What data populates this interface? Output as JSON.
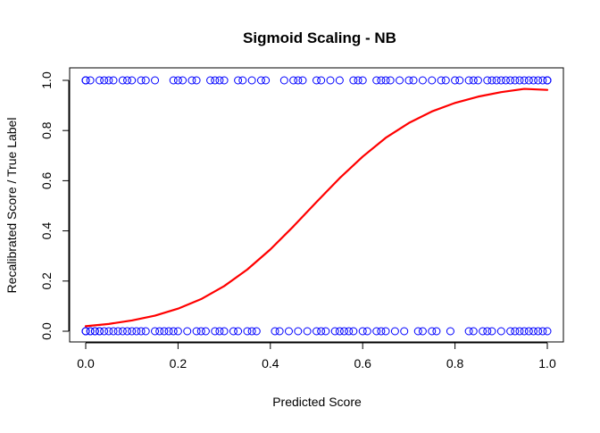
{
  "chart_data": {
    "type": "scatter",
    "title": "Sigmoid Scaling - NB",
    "xlabel": "Predicted Score",
    "ylabel": "Recalibrated Score / True Label",
    "xlim": [
      0.0,
      1.0
    ],
    "ylim": [
      0.0,
      1.0
    ],
    "x_ticks": [
      "0.0",
      "0.2",
      "0.4",
      "0.6",
      "0.8",
      "1.0"
    ],
    "y_ticks": [
      "0.0",
      "0.2",
      "0.4",
      "0.6",
      "0.8",
      "1.0"
    ],
    "grid": false,
    "legend": "none",
    "series": [
      {
        "type": "scatter",
        "color": "#0000ff",
        "marker": "open-circle",
        "points": [
          [
            0.0,
            1
          ],
          [
            0.0,
            1
          ],
          [
            0.0,
            1
          ],
          [
            0.01,
            1
          ],
          [
            0.03,
            1
          ],
          [
            0.04,
            1
          ],
          [
            0.05,
            1
          ],
          [
            0.06,
            1
          ],
          [
            0.08,
            1
          ],
          [
            0.09,
            1
          ],
          [
            0.1,
            1
          ],
          [
            0.12,
            1
          ],
          [
            0.13,
            1
          ],
          [
            0.15,
            1
          ],
          [
            0.19,
            1
          ],
          [
            0.2,
            1
          ],
          [
            0.21,
            1
          ],
          [
            0.23,
            1
          ],
          [
            0.24,
            1
          ],
          [
            0.27,
            1
          ],
          [
            0.28,
            1
          ],
          [
            0.29,
            1
          ],
          [
            0.3,
            1
          ],
          [
            0.33,
            1
          ],
          [
            0.34,
            1
          ],
          [
            0.36,
            1
          ],
          [
            0.38,
            1
          ],
          [
            0.39,
            1
          ],
          [
            0.43,
            1
          ],
          [
            0.45,
            1
          ],
          [
            0.46,
            1
          ],
          [
            0.47,
            1
          ],
          [
            0.5,
            1
          ],
          [
            0.51,
            1
          ],
          [
            0.53,
            1
          ],
          [
            0.55,
            1
          ],
          [
            0.58,
            1
          ],
          [
            0.59,
            1
          ],
          [
            0.6,
            1
          ],
          [
            0.63,
            1
          ],
          [
            0.64,
            1
          ],
          [
            0.65,
            1
          ],
          [
            0.66,
            1
          ],
          [
            0.68,
            1
          ],
          [
            0.7,
            1
          ],
          [
            0.71,
            1
          ],
          [
            0.73,
            1
          ],
          [
            0.75,
            1
          ],
          [
            0.77,
            1
          ],
          [
            0.78,
            1
          ],
          [
            0.8,
            1
          ],
          [
            0.81,
            1
          ],
          [
            0.83,
            1
          ],
          [
            0.84,
            1
          ],
          [
            0.85,
            1
          ],
          [
            0.87,
            1
          ],
          [
            0.88,
            1
          ],
          [
            0.89,
            1
          ],
          [
            0.9,
            1
          ],
          [
            0.91,
            1
          ],
          [
            0.92,
            1
          ],
          [
            0.93,
            1
          ],
          [
            0.94,
            1
          ],
          [
            0.95,
            1
          ],
          [
            0.96,
            1
          ],
          [
            0.97,
            1
          ],
          [
            0.98,
            1
          ],
          [
            0.99,
            1
          ],
          [
            1.0,
            1
          ],
          [
            1.0,
            1
          ],
          [
            1.0,
            1
          ],
          [
            0.0,
            0
          ],
          [
            0.0,
            0
          ],
          [
            0.0,
            0
          ],
          [
            0.01,
            0
          ],
          [
            0.01,
            0
          ],
          [
            0.02,
            0
          ],
          [
            0.02,
            0
          ],
          [
            0.03,
            0
          ],
          [
            0.03,
            0
          ],
          [
            0.04,
            0
          ],
          [
            0.05,
            0
          ],
          [
            0.06,
            0
          ],
          [
            0.07,
            0
          ],
          [
            0.08,
            0
          ],
          [
            0.09,
            0
          ],
          [
            0.1,
            0
          ],
          [
            0.11,
            0
          ],
          [
            0.12,
            0
          ],
          [
            0.13,
            0
          ],
          [
            0.15,
            0
          ],
          [
            0.16,
            0
          ],
          [
            0.17,
            0
          ],
          [
            0.18,
            0
          ],
          [
            0.19,
            0
          ],
          [
            0.2,
            0
          ],
          [
            0.22,
            0
          ],
          [
            0.24,
            0
          ],
          [
            0.25,
            0
          ],
          [
            0.26,
            0
          ],
          [
            0.28,
            0
          ],
          [
            0.29,
            0
          ],
          [
            0.3,
            0
          ],
          [
            0.32,
            0
          ],
          [
            0.33,
            0
          ],
          [
            0.35,
            0
          ],
          [
            0.36,
            0
          ],
          [
            0.37,
            0
          ],
          [
            0.41,
            0
          ],
          [
            0.42,
            0
          ],
          [
            0.44,
            0
          ],
          [
            0.46,
            0
          ],
          [
            0.48,
            0
          ],
          [
            0.5,
            0
          ],
          [
            0.51,
            0
          ],
          [
            0.52,
            0
          ],
          [
            0.54,
            0
          ],
          [
            0.55,
            0
          ],
          [
            0.56,
            0
          ],
          [
            0.57,
            0
          ],
          [
            0.58,
            0
          ],
          [
            0.6,
            0
          ],
          [
            0.61,
            0
          ],
          [
            0.63,
            0
          ],
          [
            0.64,
            0
          ],
          [
            0.65,
            0
          ],
          [
            0.67,
            0
          ],
          [
            0.69,
            0
          ],
          [
            0.72,
            0
          ],
          [
            0.73,
            0
          ],
          [
            0.75,
            0
          ],
          [
            0.76,
            0
          ],
          [
            0.79,
            0
          ],
          [
            0.83,
            0
          ],
          [
            0.84,
            0
          ],
          [
            0.86,
            0
          ],
          [
            0.87,
            0
          ],
          [
            0.88,
            0
          ],
          [
            0.9,
            0
          ],
          [
            0.92,
            0
          ],
          [
            0.93,
            0
          ],
          [
            0.94,
            0
          ],
          [
            0.95,
            0
          ],
          [
            0.96,
            0
          ],
          [
            0.97,
            0
          ],
          [
            0.98,
            0
          ],
          [
            0.99,
            0
          ],
          [
            1.0,
            0
          ]
        ]
      },
      {
        "type": "line",
        "color": "#ff0000",
        "x": [
          0.0,
          0.05,
          0.1,
          0.15,
          0.2,
          0.25,
          0.3,
          0.35,
          0.4,
          0.45,
          0.5,
          0.55,
          0.6,
          0.65,
          0.7,
          0.75,
          0.8,
          0.85,
          0.9,
          0.95,
          1.0
        ],
        "y": [
          0.02,
          0.029,
          0.043,
          0.062,
          0.09,
          0.128,
          0.18,
          0.246,
          0.326,
          0.418,
          0.515,
          0.61,
          0.696,
          0.771,
          0.83,
          0.876,
          0.91,
          0.935,
          0.953,
          0.966,
          0.962
        ]
      }
    ]
  }
}
